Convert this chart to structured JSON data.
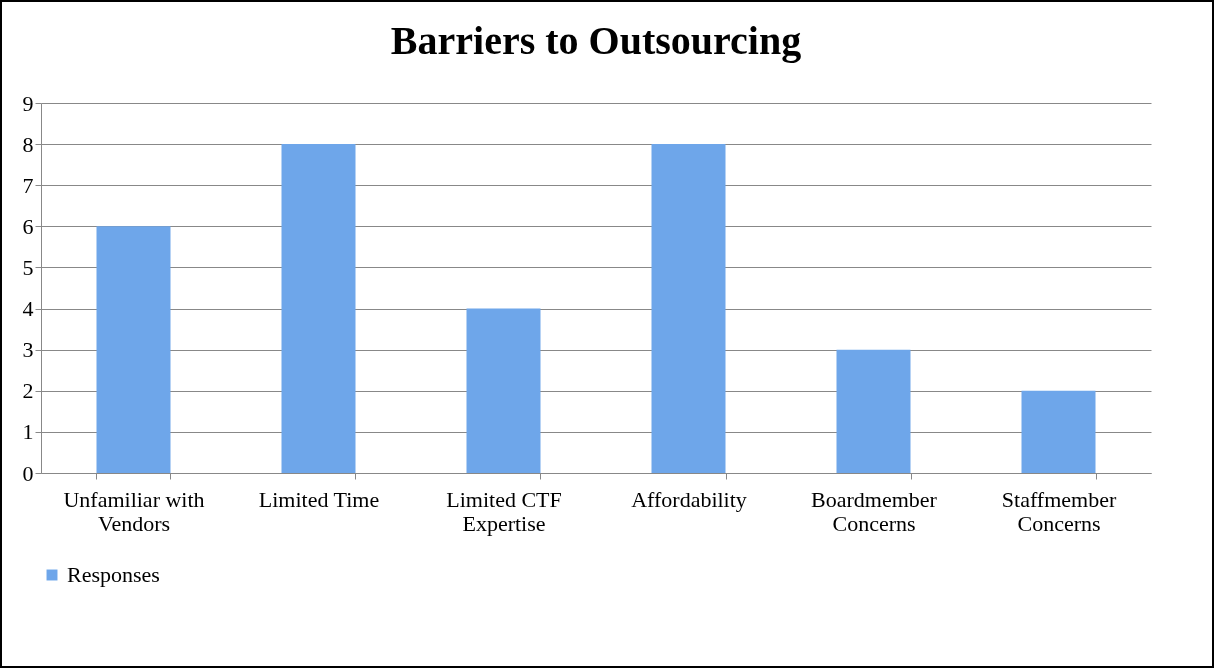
{
  "chart_data": {
    "type": "bar",
    "title": "Barriers to Outsourcing",
    "categories": [
      "Unfamiliar with Vendors",
      "Limited Time",
      "Limited CTF Expertise",
      "Affordability",
      "Boardmember Concerns",
      "Staffmember Concerns"
    ],
    "series": [
      {
        "name": "Responses",
        "color": "#6ea6ea",
        "values": [
          6,
          8,
          4,
          8,
          3,
          2
        ]
      }
    ],
    "ylim": [
      0,
      9
    ],
    "yticks": [
      0,
      1,
      2,
      3,
      4,
      5,
      6,
      7,
      8,
      9
    ],
    "grid": "y",
    "legend": "bottom"
  }
}
